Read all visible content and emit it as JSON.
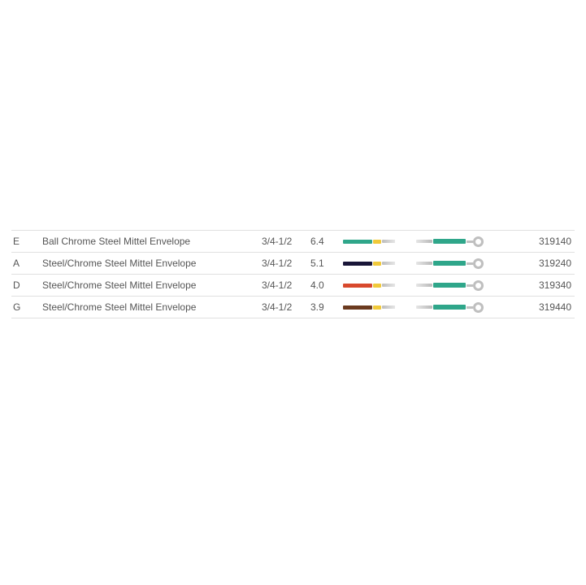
{
  "colors": {
    "text": "#555555",
    "row_border": "#e0e0e0",
    "yellow_wrap": "#f0c93a",
    "gray_tip": "#bcbcbc",
    "loop_green": "#2fa68a",
    "ring": "#bfbfbf"
  },
  "table": {
    "rows": [
      {
        "code": "E",
        "description": "Ball Chrome Steel Mittel Envelope",
        "size": "3/4-1/2",
        "value": "6.4",
        "main_color": "#2fa68a",
        "part_no": "319140"
      },
      {
        "code": "A",
        "description": "Steel/Chrome Steel Mittel Envelope",
        "size": "3/4-1/2",
        "value": "5.1",
        "main_color": "#191638",
        "part_no": "319240"
      },
      {
        "code": "D",
        "description": "Steel/Chrome Steel Mittel Envelope",
        "size": "3/4-1/2",
        "value": "4.0",
        "main_color": "#d8492d",
        "part_no": "319340"
      },
      {
        "code": "G",
        "description": "Steel/Chrome Steel Mittel Envelope",
        "size": "3/4-1/2",
        "value": "3.9",
        "main_color": "#6b3a1f",
        "part_no": "319440"
      }
    ]
  }
}
